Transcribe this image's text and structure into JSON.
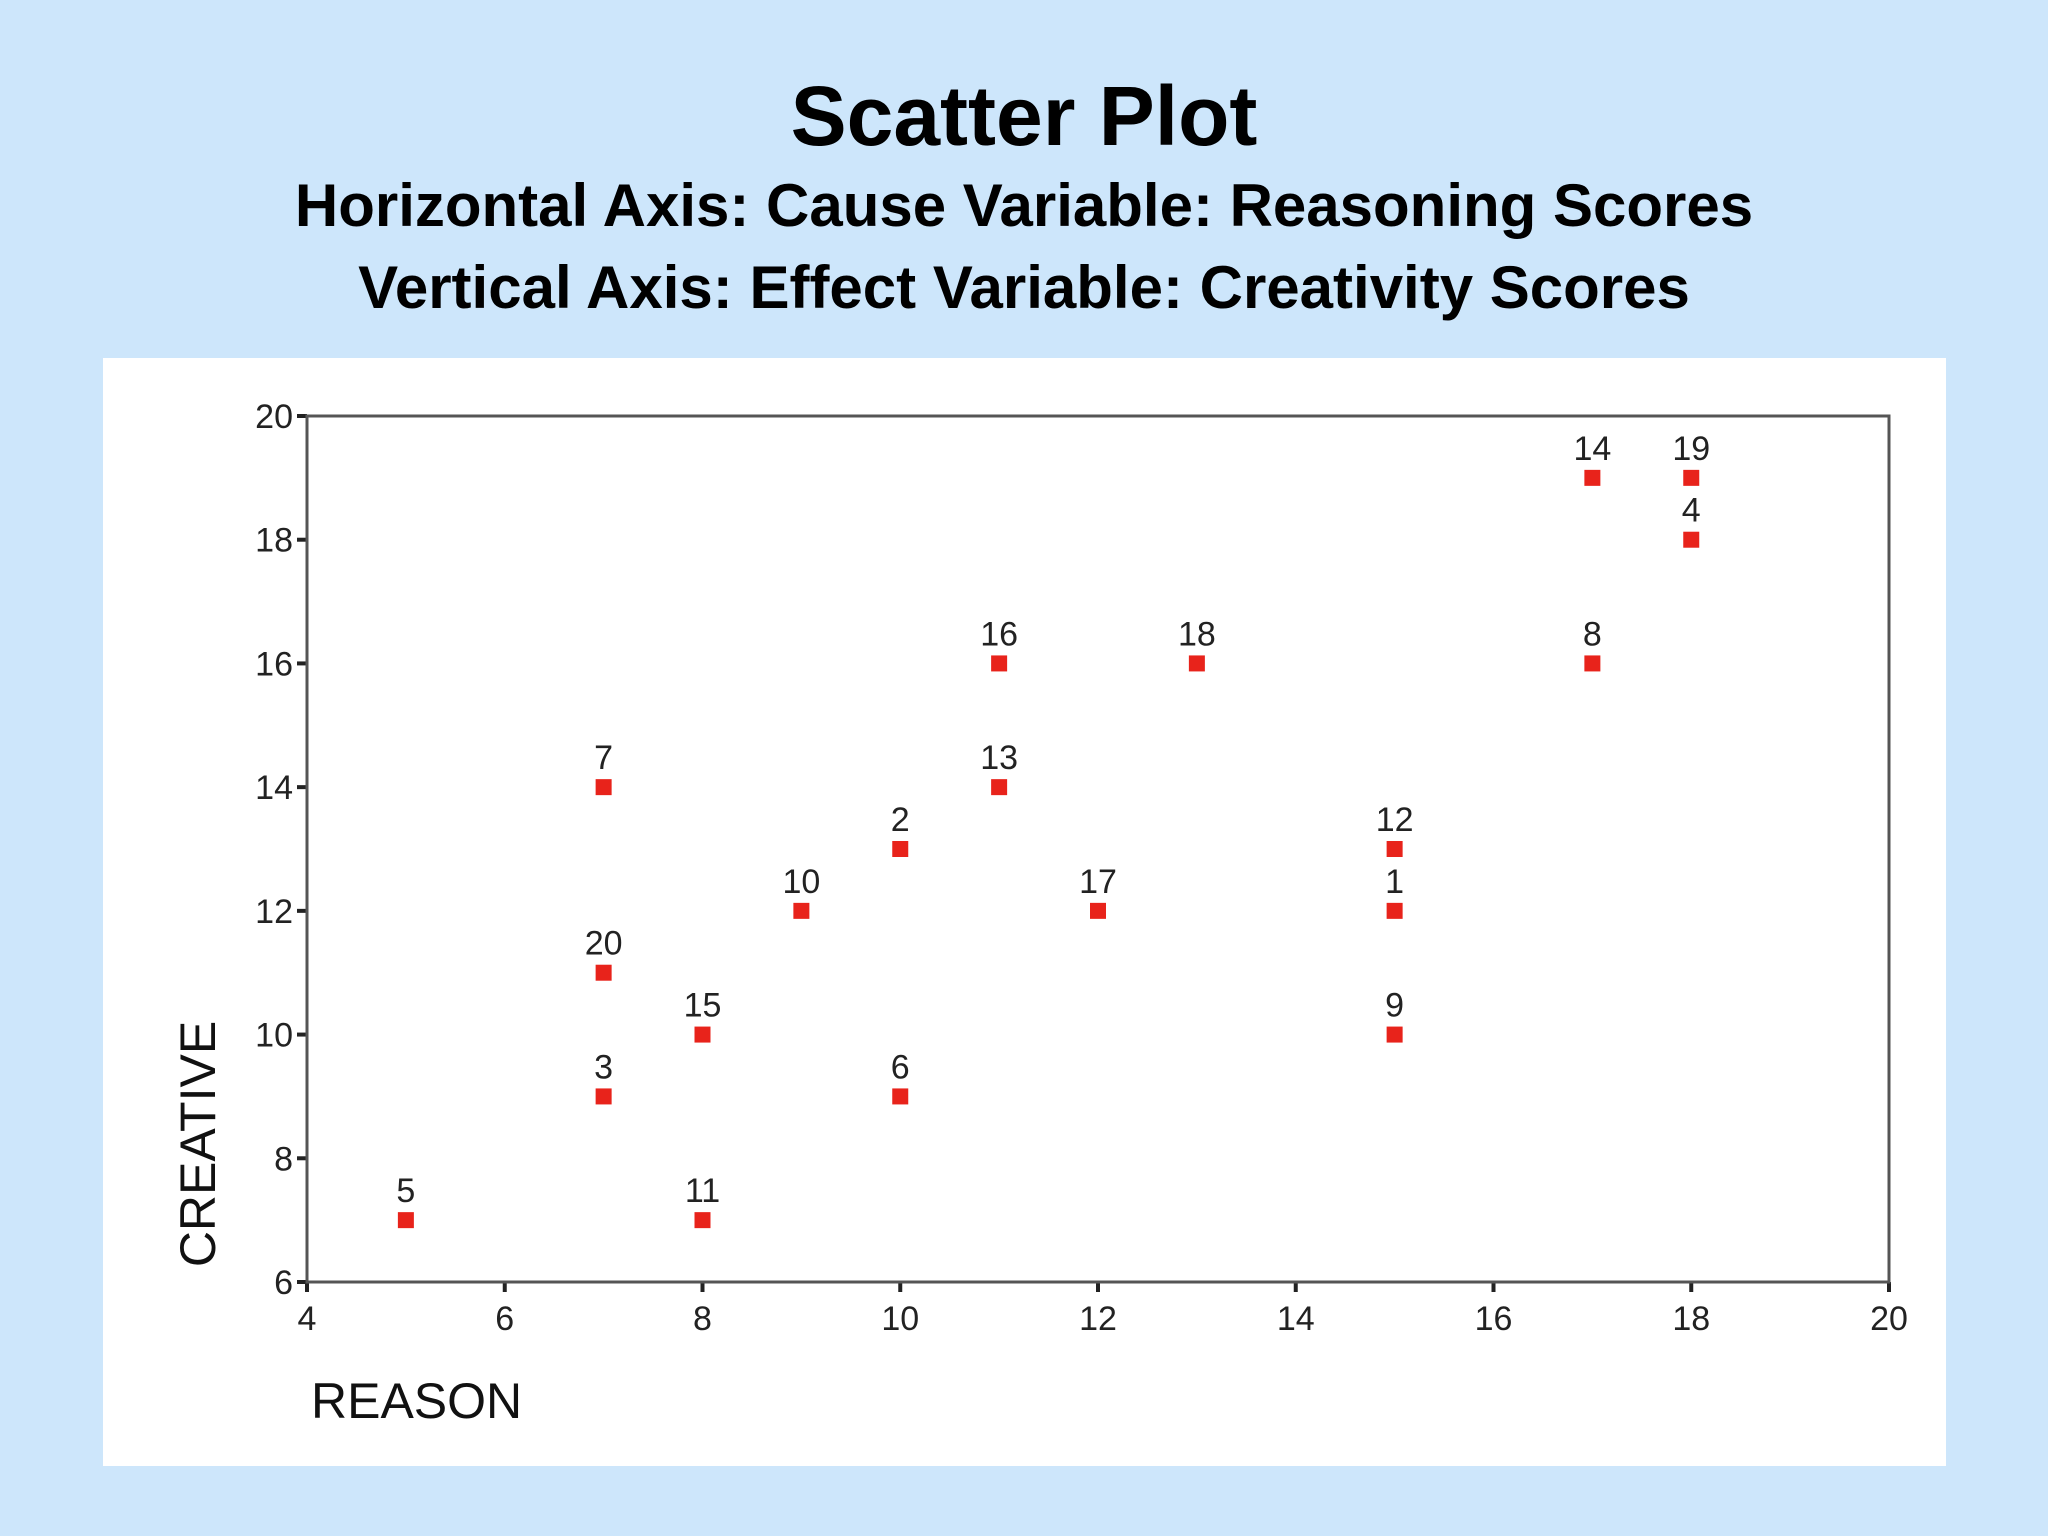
{
  "slide": {
    "title": "Scatter Plot",
    "subtitle_line1": "Horizontal Axis: Cause Variable: Reasoning Scores",
    "subtitle_line2": "Vertical Axis: Effect Variable: Creativity Scores"
  },
  "chart_data": {
    "type": "scatter",
    "xlabel": "REASON",
    "ylabel": "CREATIVE",
    "xlim": [
      4,
      20
    ],
    "ylim": [
      6,
      20
    ],
    "xticks": [
      4,
      6,
      8,
      10,
      12,
      14,
      16,
      18,
      20
    ],
    "yticks": [
      6,
      8,
      10,
      12,
      14,
      16,
      18,
      20
    ],
    "grid": false,
    "marker_color": "#e8231b",
    "points": [
      {
        "label": "1",
        "x": 15,
        "y": 12
      },
      {
        "label": "2",
        "x": 10,
        "y": 13
      },
      {
        "label": "3",
        "x": 7,
        "y": 9
      },
      {
        "label": "4",
        "x": 18,
        "y": 18
      },
      {
        "label": "5",
        "x": 5,
        "y": 7
      },
      {
        "label": "6",
        "x": 10,
        "y": 9
      },
      {
        "label": "7",
        "x": 7,
        "y": 14
      },
      {
        "label": "8",
        "x": 17,
        "y": 16
      },
      {
        "label": "9",
        "x": 15,
        "y": 10
      },
      {
        "label": "10",
        "x": 9,
        "y": 12
      },
      {
        "label": "11",
        "x": 8,
        "y": 7
      },
      {
        "label": "12",
        "x": 15,
        "y": 13
      },
      {
        "label": "13",
        "x": 11,
        "y": 14
      },
      {
        "label": "14",
        "x": 17,
        "y": 19
      },
      {
        "label": "15",
        "x": 8,
        "y": 10
      },
      {
        "label": "16",
        "x": 11,
        "y": 16
      },
      {
        "label": "17",
        "x": 12,
        "y": 12
      },
      {
        "label": "18",
        "x": 13,
        "y": 16
      },
      {
        "label": "19",
        "x": 18,
        "y": 19
      },
      {
        "label": "20",
        "x": 7,
        "y": 11
      }
    ]
  }
}
